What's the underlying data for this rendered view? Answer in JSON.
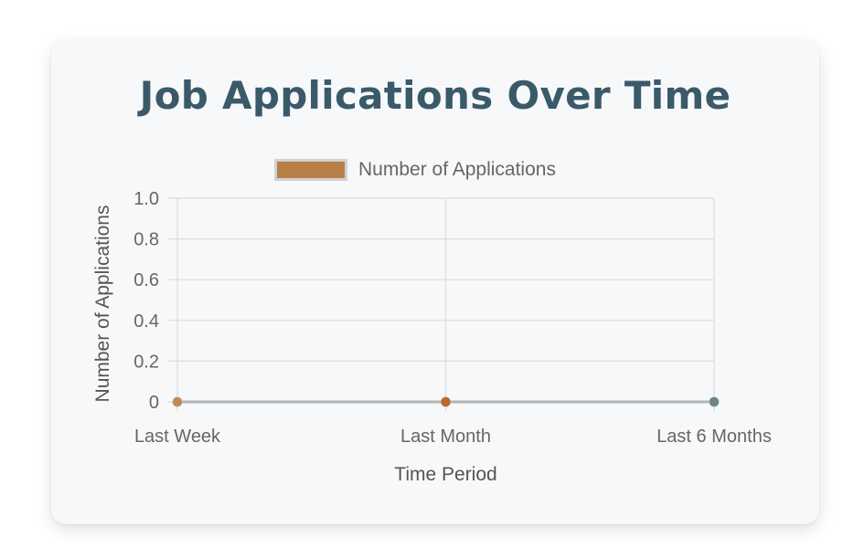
{
  "chart_data": {
    "type": "line",
    "title": "Job Applications Over Time",
    "title_color": "#3a5a6a",
    "categories": [
      "Last Week",
      "Last Month",
      "Last 6 Months"
    ],
    "series": [
      {
        "name": "Number of Applications",
        "values": [
          0,
          0,
          0
        ],
        "legend_fill": "#b87f48",
        "line_color": "#b0b4b6",
        "point_colors": [
          "#c08a56",
          "#b96a2c",
          "#6c8688"
        ]
      }
    ],
    "xlabel": "Time Period",
    "ylabel": "Number of Applications",
    "ylim": [
      0,
      1
    ],
    "yticks": [
      "0",
      "0.2",
      "0.4",
      "0.6",
      "0.8",
      "1.0"
    ],
    "ytick_values": [
      0,
      0.2,
      0.4,
      0.6,
      0.8,
      1.0
    ],
    "grid": true,
    "legend_position": "top"
  }
}
